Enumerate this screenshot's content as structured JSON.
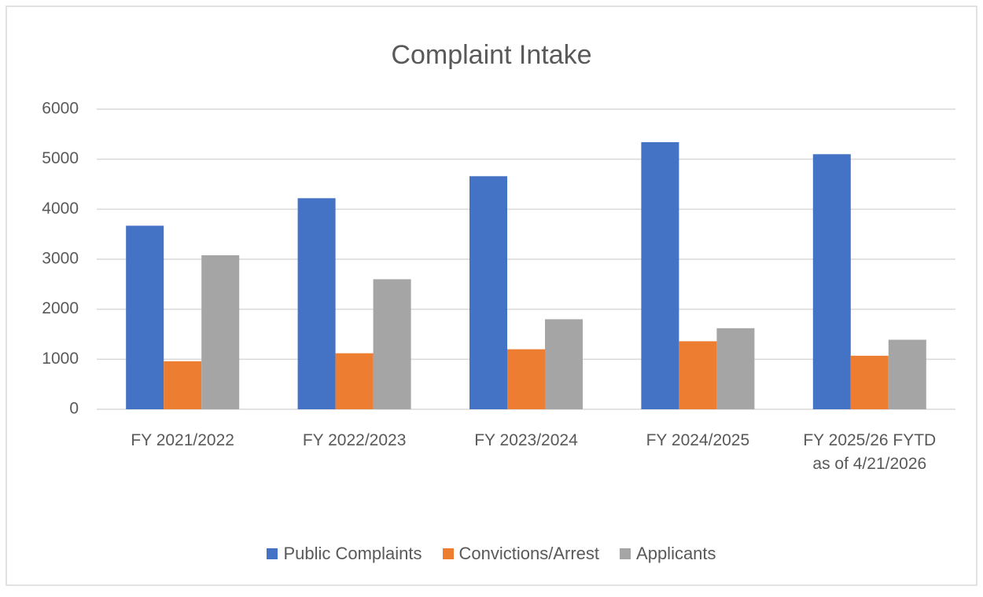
{
  "chart_data": {
    "type": "bar",
    "title": "Complaint Intake",
    "categories": [
      "FY 2021/2022",
      "FY 2022/2023",
      "FY 2023/2024",
      "FY 2024/2025",
      "FY 2025/26 FYTD as of 4/21/2026"
    ],
    "series": [
      {
        "name": "Public Complaints",
        "color": "#4472c4",
        "values": [
          3670,
          4220,
          4660,
          5340,
          5100
        ]
      },
      {
        "name": "Convictions/Arrest",
        "color": "#ed7d31",
        "values": [
          960,
          1120,
          1200,
          1360,
          1070
        ]
      },
      {
        "name": "Applicants",
        "color": "#a5a5a5",
        "values": [
          3080,
          2600,
          1800,
          1620,
          1390
        ]
      }
    ],
    "ylim": [
      0,
      6000
    ],
    "yticks": [
      0,
      1000,
      2000,
      3000,
      4000,
      5000,
      6000
    ],
    "grid": true,
    "legend": "bottom"
  }
}
